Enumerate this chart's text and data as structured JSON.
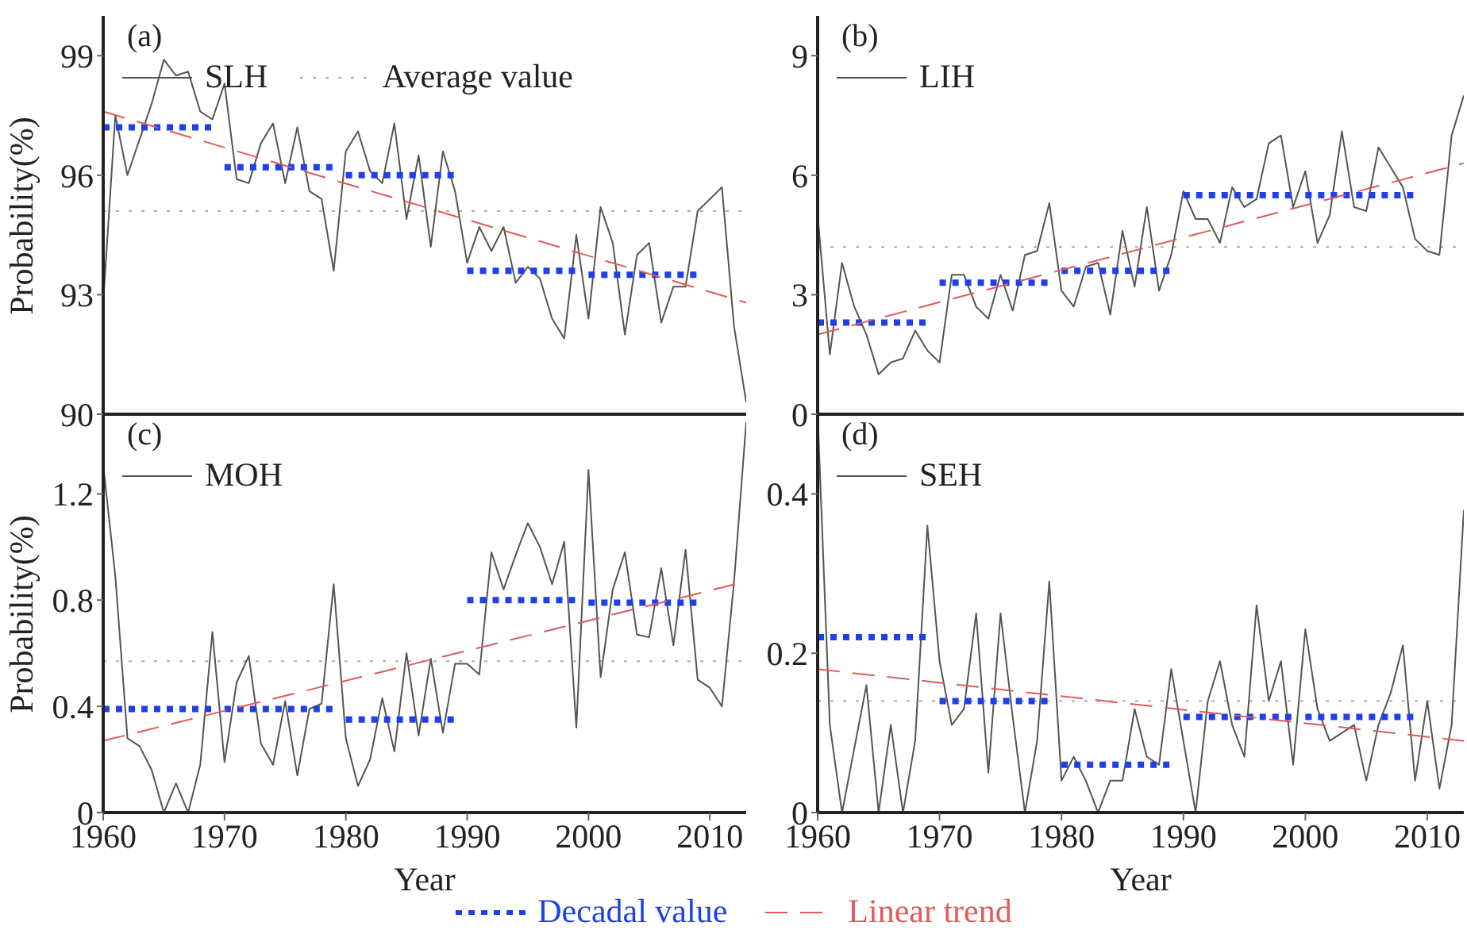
{
  "chart_data": [
    {
      "type": "line",
      "title": "(a)",
      "ylabel": "Probability(%)",
      "xlim": [
        1960,
        2013
      ],
      "xticks": [
        1960,
        1970,
        1980,
        1990,
        2000,
        2010
      ],
      "ylim": [
        90,
        100
      ],
      "yticks": [
        90,
        93,
        96,
        99
      ],
      "tick_labels": "y",
      "legend": "top left",
      "marker": "none",
      "x": [
        1960,
        1961,
        1962,
        1963,
        1964,
        1965,
        1966,
        1967,
        1968,
        1969,
        1970,
        1971,
        1972,
        1973,
        1974,
        1975,
        1976,
        1977,
        1978,
        1979,
        1980,
        1981,
        1982,
        1983,
        1984,
        1985,
        1986,
        1987,
        1988,
        1989,
        1990,
        1991,
        1992,
        1993,
        1994,
        1995,
        1996,
        1997,
        1998,
        1999,
        2000,
        2001,
        2002,
        2003,
        2004,
        2005,
        2006,
        2007,
        2008,
        2009,
        2010,
        2011,
        2012,
        2013
      ],
      "series": [
        {
          "name": "SLH",
          "color": "#555555",
          "line_style": "solid",
          "values": [
            92.8,
            97.5,
            96.0,
            96.9,
            97.8,
            98.9,
            98.5,
            98.6,
            97.6,
            97.4,
            98.3,
            95.9,
            95.8,
            96.8,
            97.3,
            95.8,
            97.2,
            95.6,
            95.4,
            93.6,
            96.6,
            97.1,
            96.1,
            95.8,
            97.3,
            94.9,
            96.5,
            94.2,
            96.6,
            95.6,
            93.8,
            94.7,
            94.1,
            94.7,
            93.3,
            93.7,
            93.4,
            92.4,
            91.9,
            94.5,
            92.4,
            95.2,
            94.3,
            92.0,
            94.0,
            94.3,
            92.3,
            93.2,
            93.2,
            95.1,
            95.4,
            95.7,
            92.2,
            90.3
          ]
        },
        {
          "color": "#1f3fe8",
          "line_style": "dotted",
          "x": [
            1960,
            1969,
            1969.5,
            1970,
            1979,
            1979.5,
            1980,
            1989,
            1989.5,
            1990,
            1999,
            1999.5,
            2000,
            2009
          ],
          "values": [
            97.2,
            97.2,
            null,
            96.2,
            96.2,
            null,
            96.0,
            96.0,
            null,
            93.6,
            93.6,
            null,
            93.5,
            93.5
          ]
        },
        {
          "color": "#e05a5a",
          "line_style": "dashed",
          "x": [
            1960,
            2013
          ],
          "values": [
            97.6,
            92.8
          ]
        }
      ],
      "ref_lines": [
        {
          "axis": "y",
          "value": 95.1,
          "label": "Average value",
          "color": "#aaaaaa",
          "line_style": "dotted"
        }
      ]
    },
    {
      "type": "line",
      "title": "(b)",
      "xlim": [
        1960,
        2013
      ],
      "xticks": [
        1960,
        1970,
        1980,
        1990,
        2000,
        2010
      ],
      "ylim": [
        0,
        10
      ],
      "yticks": [
        0,
        3,
        6,
        9
      ],
      "tick_labels": "y",
      "legend": "top left",
      "marker": "none",
      "x": [
        1960,
        1961,
        1962,
        1963,
        1964,
        1965,
        1966,
        1967,
        1968,
        1969,
        1970,
        1971,
        1972,
        1973,
        1974,
        1975,
        1976,
        1977,
        1978,
        1979,
        1980,
        1981,
        1982,
        1983,
        1984,
        1985,
        1986,
        1987,
        1988,
        1989,
        1990,
        1991,
        1992,
        1993,
        1994,
        1995,
        1996,
        1997,
        1998,
        1999,
        2000,
        2001,
        2002,
        2003,
        2004,
        2005,
        2006,
        2007,
        2008,
        2009,
        2010,
        2011,
        2012,
        2013
      ],
      "series": [
        {
          "name": "LIH",
          "color": "#555555",
          "line_style": "solid",
          "values": [
            5.0,
            1.5,
            3.8,
            2.7,
            2.0,
            1.0,
            1.3,
            1.4,
            2.1,
            1.6,
            1.3,
            3.5,
            3.5,
            2.7,
            2.4,
            3.5,
            2.6,
            4.0,
            4.1,
            5.3,
            3.1,
            2.7,
            3.7,
            3.8,
            2.5,
            4.6,
            3.2,
            5.2,
            3.1,
            4.0,
            5.6,
            4.9,
            4.9,
            4.3,
            5.7,
            5.2,
            5.4,
            6.8,
            7.0,
            5.2,
            6.1,
            4.3,
            5.0,
            7.1,
            5.2,
            5.1,
            6.7,
            6.2,
            5.7,
            4.4,
            4.1,
            4.0,
            7.0,
            8.0
          ]
        },
        {
          "color": "#1f3fe8",
          "line_style": "dotted",
          "x": [
            1960,
            1969,
            1969.5,
            1970,
            1979,
            1979.5,
            1980,
            1989,
            1989.5,
            1990,
            1999,
            1999.5,
            2000,
            2009
          ],
          "values": [
            2.3,
            2.3,
            null,
            3.3,
            3.3,
            null,
            3.6,
            3.6,
            null,
            5.5,
            5.5,
            null,
            5.5,
            5.5
          ]
        },
        {
          "color": "#e05a5a",
          "line_style": "dashed",
          "x": [
            1960,
            2013
          ],
          "values": [
            2.0,
            6.3
          ]
        }
      ],
      "ref_lines": [
        {
          "axis": "y",
          "value": 4.2,
          "color": "#aaaaaa",
          "line_style": "dotted"
        }
      ]
    },
    {
      "type": "line",
      "title": "(c)",
      "xlabel": "Year",
      "ylabel": "Probability(%)",
      "xlim": [
        1960,
        2013
      ],
      "xticks": [
        1960,
        1970,
        1980,
        1990,
        2000,
        2010
      ],
      "ylim": [
        0,
        1.5
      ],
      "yticks": [
        0,
        0.4,
        0.8,
        1.2
      ],
      "legend": "bottom",
      "marker": "none",
      "x": [
        1960,
        1961,
        1962,
        1963,
        1964,
        1965,
        1966,
        1967,
        1968,
        1969,
        1970,
        1971,
        1972,
        1973,
        1974,
        1975,
        1976,
        1977,
        1978,
        1979,
        1980,
        1981,
        1982,
        1983,
        1984,
        1985,
        1986,
        1987,
        1988,
        1989,
        1990,
        1991,
        1992,
        1993,
        1994,
        1995,
        1996,
        1997,
        1998,
        1999,
        2000,
        2001,
        2002,
        2003,
        2004,
        2005,
        2006,
        2007,
        2008,
        2009,
        2010,
        2011,
        2012,
        2013
      ],
      "series": [
        {
          "name": "MOH",
          "color": "#555555",
          "line_style": "solid",
          "values": [
            1.31,
            0.89,
            0.28,
            0.25,
            0.16,
            0,
            0.11,
            0,
            0.18,
            0.68,
            0.19,
            0.49,
            0.59,
            0.26,
            0.18,
            0.42,
            0.14,
            0.39,
            0.41,
            0.86,
            0.28,
            0.1,
            0.2,
            0.43,
            0.23,
            0.6,
            0.29,
            0.58,
            0.3,
            0.56,
            0.56,
            0.52,
            0.98,
            0.84,
            0.97,
            1.09,
            1.0,
            0.86,
            1.02,
            0.32,
            1.29,
            0.51,
            0.84,
            0.98,
            0.67,
            0.66,
            0.92,
            0.63,
            0.99,
            0.5,
            0.47,
            0.4,
            0.87,
            1.47
          ]
        },
        {
          "name": "Decadal value",
          "color": "#1f3fe8",
          "line_style": "dotted",
          "x": [
            1960,
            1969,
            1969.5,
            1970,
            1979,
            1979.5,
            1980,
            1989,
            1989.5,
            1990,
            1999,
            1999.5,
            2000,
            2009
          ],
          "values": [
            0.39,
            0.39,
            null,
            0.39,
            0.39,
            null,
            0.35,
            0.35,
            null,
            0.8,
            0.8,
            null,
            0.79,
            0.79
          ]
        },
        {
          "name": "Linear trend",
          "color": "#e05a5a",
          "line_style": "dashed",
          "x": [
            1960,
            2013
          ],
          "values": [
            0.27,
            0.87
          ]
        }
      ],
      "ref_lines": [
        {
          "axis": "y",
          "value": 0.57,
          "color": "#aaaaaa",
          "line_style": "dotted"
        }
      ]
    },
    {
      "type": "line",
      "title": "(d)",
      "xlabel": "Year",
      "xlim": [
        1960,
        2013
      ],
      "xticks": [
        1960,
        1970,
        1980,
        1990,
        2000,
        2010
      ],
      "ylim": [
        0,
        0.5
      ],
      "yticks": [
        0,
        0.2,
        0.4
      ],
      "legend": "top left",
      "marker": "none",
      "x": [
        1960,
        1961,
        1962,
        1963,
        1964,
        1965,
        1966,
        1967,
        1968,
        1969,
        1970,
        1971,
        1972,
        1973,
        1974,
        1975,
        1976,
        1977,
        1978,
        1979,
        1980,
        1981,
        1982,
        1983,
        1984,
        1985,
        1986,
        1987,
        1988,
        1989,
        1990,
        1991,
        1992,
        1993,
        1994,
        1995,
        1996,
        1997,
        1998,
        1999,
        2000,
        2001,
        2002,
        2003,
        2004,
        2005,
        2006,
        2007,
        2008,
        2009,
        2010,
        2011,
        2012,
        2013
      ],
      "series": [
        {
          "name": "SEH",
          "color": "#555555",
          "line_style": "solid",
          "values": [
            0.5,
            0.11,
            0,
            0.08,
            0.16,
            0,
            0.11,
            0,
            0.09,
            0.36,
            0.19,
            0.11,
            0.13,
            0.25,
            0.05,
            0.25,
            0.12,
            0,
            0.09,
            0.29,
            0.04,
            0.07,
            0.04,
            0,
            0.04,
            0.04,
            0.13,
            0.07,
            0.06,
            0.18,
            0.09,
            0,
            0.14,
            0.19,
            0.11,
            0.07,
            0.26,
            0.14,
            0.19,
            0.06,
            0.23,
            0.13,
            0.09,
            0.1,
            0.11,
            0.04,
            0.11,
            0.15,
            0.21,
            0.04,
            0.14,
            0.03,
            0.11,
            0.38
          ]
        },
        {
          "color": "#1f3fe8",
          "line_style": "dotted",
          "x": [
            1960,
            1969,
            1969.5,
            1970,
            1979,
            1979.5,
            1980,
            1989,
            1989.5,
            1990,
            1999,
            1999.5,
            2000,
            2009
          ],
          "values": [
            0.22,
            0.22,
            null,
            0.14,
            0.14,
            null,
            0.06,
            0.06,
            null,
            0.12,
            0.12,
            null,
            0.12,
            0.12
          ]
        },
        {
          "color": "#e05a5a",
          "line_style": "dashed",
          "x": [
            1960,
            2013
          ],
          "values": [
            0.18,
            0.09
          ]
        }
      ],
      "ref_lines": [
        {
          "axis": "y",
          "value": 0.14,
          "color": "#aaaaaa",
          "line_style": "dotted"
        }
      ]
    }
  ]
}
